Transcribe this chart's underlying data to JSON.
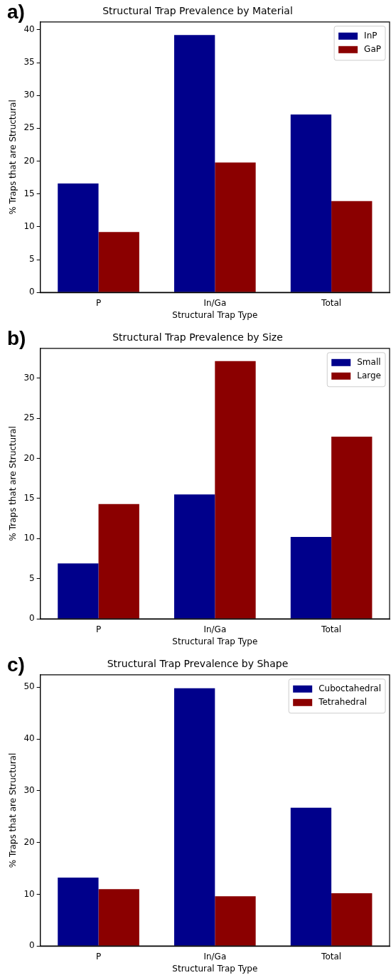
{
  "chart_data": [
    {
      "type": "bar",
      "title": "Structural Trap Prevalence by Material",
      "xlabel": "Structural Trap Type",
      "ylabel": "% Traps that are Structural",
      "annotations": [
        "a)"
      ],
      "categories": [
        "P",
        "In/Ga",
        "Total"
      ],
      "series": [
        {
          "name": "InP",
          "color": "#00008b",
          "values": [
            16.6,
            39.2,
            27.1
          ]
        },
        {
          "name": "GaP",
          "color": "#8b0000",
          "values": [
            9.2,
            19.8,
            13.9
          ]
        }
      ],
      "ylim": [
        0,
        41.2
      ],
      "yticks": [
        0,
        5,
        10,
        15,
        20,
        25,
        30,
        35,
        40
      ],
      "grid": false,
      "legend": "top right"
    },
    {
      "type": "bar",
      "title": "Structural Trap Prevalence by Size",
      "xlabel": "Structural Trap Type",
      "ylabel": "% Traps that are Structural",
      "annotations": [
        "b)"
      ],
      "categories": [
        "P",
        "In/Ga",
        "Total"
      ],
      "series": [
        {
          "name": "Small",
          "color": "#00008b",
          "values": [
            6.9,
            15.5,
            10.2
          ]
        },
        {
          "name": "Large",
          "color": "#8b0000",
          "values": [
            14.3,
            32.1,
            22.7
          ]
        }
      ],
      "ylim": [
        0,
        33.7
      ],
      "yticks": [
        0,
        5,
        10,
        15,
        20,
        25,
        30
      ],
      "grid": false,
      "legend": "top right"
    },
    {
      "type": "bar",
      "title": "Structural Trap Prevalence by Shape",
      "xlabel": "Structural Trap Type",
      "ylabel": "% Traps that are Structural",
      "annotations": [
        "c)"
      ],
      "categories": [
        "P",
        "In/Ga",
        "Total"
      ],
      "series": [
        {
          "name": "Cuboctahedral",
          "color": "#00008b",
          "values": [
            13.2,
            49.8,
            26.7
          ]
        },
        {
          "name": "Tetrahedral",
          "color": "#8b0000",
          "values": [
            11.0,
            9.6,
            10.2
          ]
        }
      ],
      "ylim": [
        0,
        52.4
      ],
      "yticks": [
        0,
        10,
        20,
        30,
        40,
        50
      ],
      "grid": false,
      "legend": "top right"
    }
  ]
}
